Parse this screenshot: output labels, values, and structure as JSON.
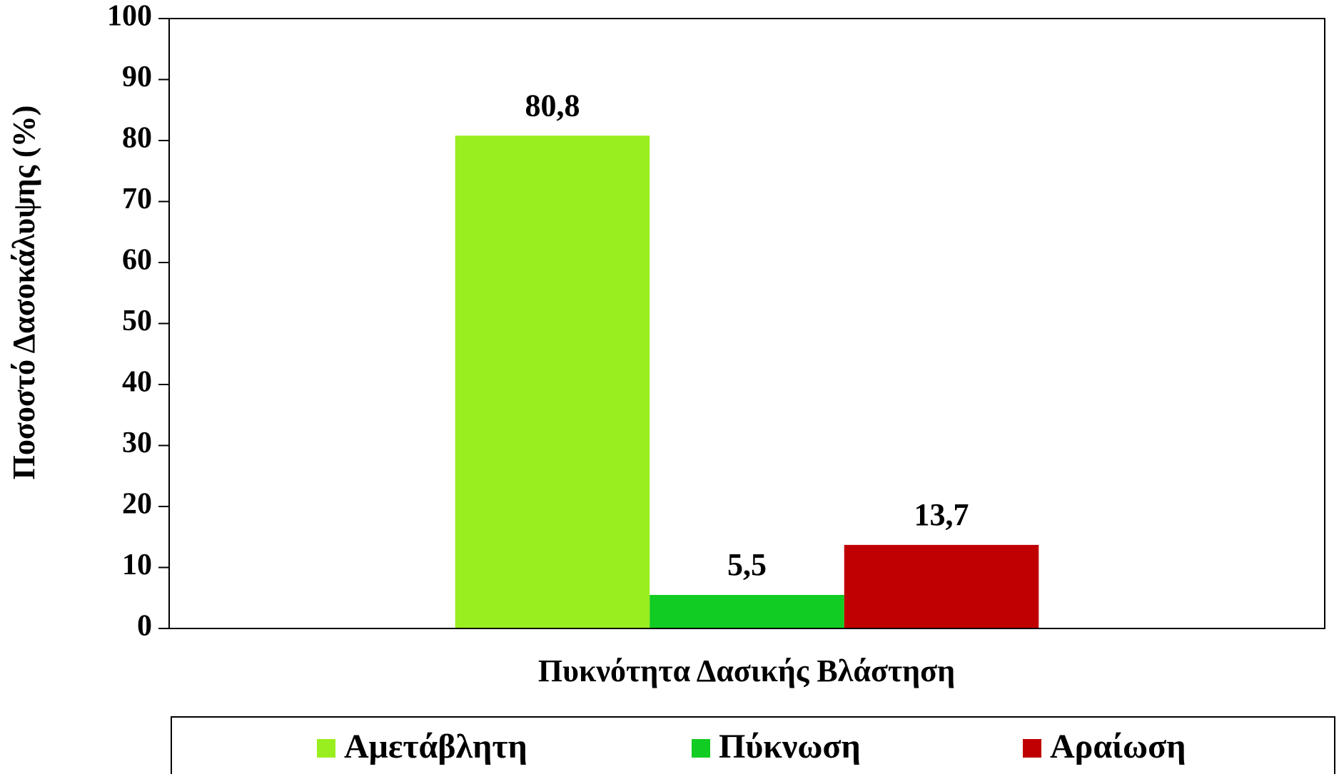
{
  "chart_data": {
    "type": "bar",
    "xlabel": "Πυκνότητα Δασικής Βλάστηση",
    "ylabel": "Ποσοστό Δασοκάλυψης (%)",
    "categories": [
      null
    ],
    "series": [
      {
        "name": "Αμετάβλητη",
        "color": "#99ee1f",
        "values": [
          80.8
        ],
        "value_labels": [
          "80,8"
        ]
      },
      {
        "name": "Πύκνωση",
        "color": "#11cc22",
        "values": [
          5.5
        ],
        "value_labels": [
          "5,5"
        ]
      },
      {
        "name": "Αραίωση",
        "color": "#c00000",
        "values": [
          13.7
        ],
        "value_labels": [
          "13,7"
        ]
      }
    ],
    "ylim": [
      0,
      100
    ],
    "yticks": [
      0,
      10,
      20,
      30,
      40,
      50,
      60,
      70,
      80,
      90,
      100
    ],
    "grid": false,
    "legend": "bottom"
  }
}
